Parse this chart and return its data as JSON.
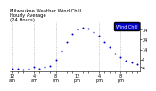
{
  "title": "Milwaukee Weather Wind Chill\nHourly Average\n(24 Hours)",
  "hours": [
    0,
    1,
    2,
    3,
    4,
    5,
    6,
    7,
    8,
    9,
    10,
    11,
    12,
    13,
    14,
    15,
    16,
    17,
    18,
    19,
    20,
    21,
    22,
    23
  ],
  "wind_chill": [
    -5,
    -5,
    -6,
    -5,
    -4,
    -5,
    -4,
    -3,
    4,
    13,
    22,
    30,
    34,
    36,
    35,
    32,
    28,
    22,
    16,
    10,
    6,
    3,
    1,
    -1
  ],
  "dot_color": "#0000cc",
  "bg_color": "#ffffff",
  "grid_color": "#888888",
  "legend_bg": "#0000cc",
  "legend_text": "Wind Chill",
  "legend_text_color": "#ffffff",
  "ylim": [
    -8,
    42
  ],
  "yticks": [
    -4,
    4,
    14,
    24,
    34
  ],
  "xlabel_fontsize": 3.5,
  "ylabel_fontsize": 3.5,
  "title_fontsize": 3.8,
  "dot_size": 2.0
}
